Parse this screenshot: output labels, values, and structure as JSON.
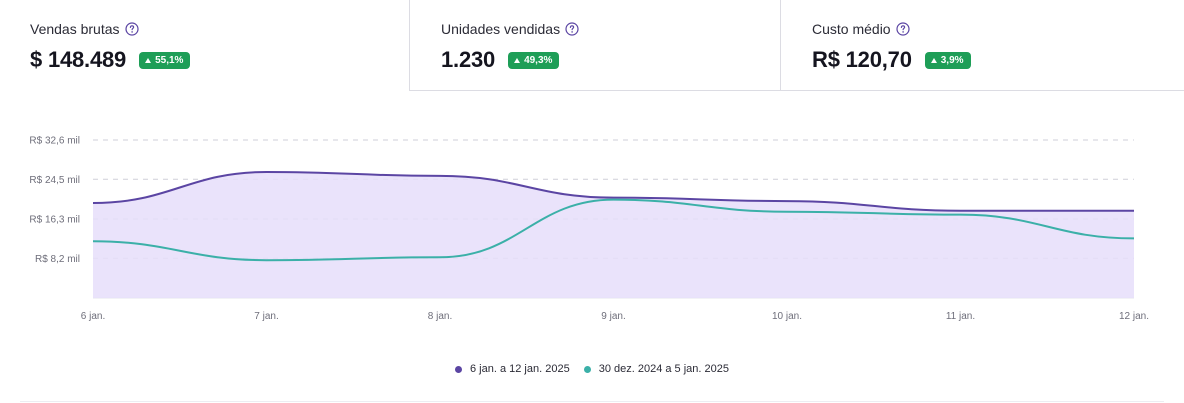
{
  "kpis": [
    {
      "label": "Vendas brutas",
      "value": "$ 148.489",
      "change": "55,1%",
      "trend": "up"
    },
    {
      "label": "Unidades vendidas",
      "value": "1.230",
      "change": "49,3%",
      "trend": "up"
    },
    {
      "label": "Custo médio",
      "value": "R$ 120,70",
      "change": "3,9%",
      "trend": "up"
    }
  ],
  "colors": {
    "current": "#5b45a3",
    "previous": "#3bb0a8",
    "fill": "#e6defa",
    "badge": "#1e9e57",
    "grid": "#cfcfd8"
  },
  "chart_data": {
    "type": "area",
    "x": [
      "6 jan.",
      "7 jan.",
      "8 jan.",
      "9 jan.",
      "10 jan.",
      "11 jan.",
      "12 jan."
    ],
    "ylim": [
      0,
      32600
    ],
    "ytick_values": [
      8200,
      16300,
      24500,
      32600
    ],
    "ytick_labels": [
      "R$ 8,2 mil",
      "R$ 16,3 mil",
      "R$ 24,5 mil",
      "R$ 32,6 mil"
    ],
    "grid": true,
    "legend_position": "bottom-center",
    "series": [
      {
        "name": "6 jan. a 12 jan. 2025",
        "color_key": "current",
        "filled": true,
        "values": [
          19600,
          26000,
          25200,
          20700,
          20000,
          18000,
          18000
        ]
      },
      {
        "name": "30 dez. 2024 a 5 jan. 2025",
        "color_key": "previous",
        "filled": false,
        "values": [
          11700,
          7800,
          8400,
          20300,
          17800,
          17200,
          12300
        ]
      }
    ]
  }
}
